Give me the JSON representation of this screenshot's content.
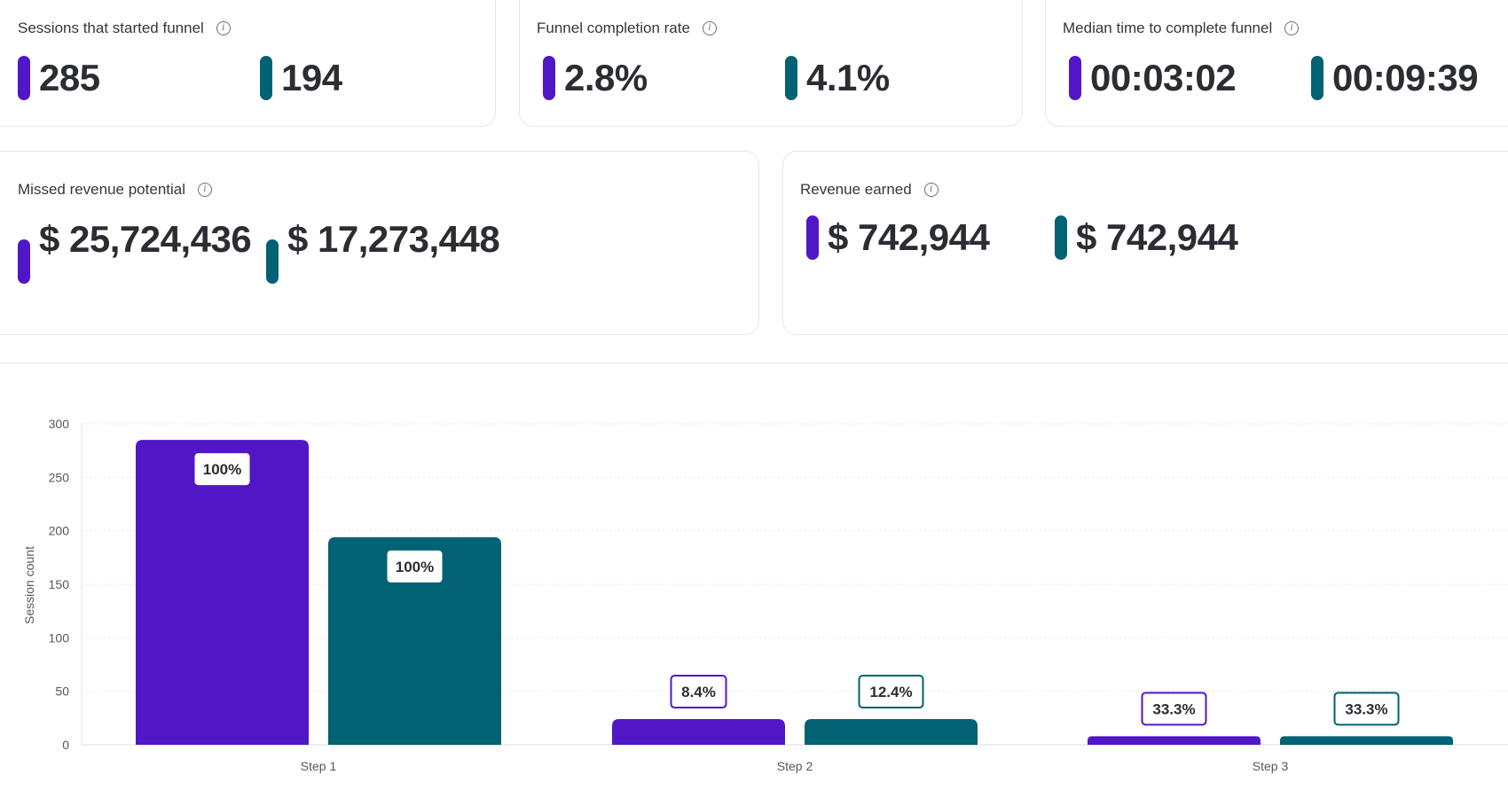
{
  "colors": {
    "series_a": "#5117c7",
    "series_b": "#006272"
  },
  "cards": {
    "sessions": {
      "title": "Sessions that started funnel",
      "a": "285",
      "b": "194"
    },
    "completion": {
      "title": "Funnel completion rate",
      "a": "2.8%",
      "b": "4.1%"
    },
    "median_time": {
      "title": "Median time to complete funnel",
      "a": "00:03:02",
      "b": "00:09:39"
    },
    "missed_revenue": {
      "title": "Missed revenue potential",
      "a": "$ 25,724,436",
      "b": "$ 17,273,448"
    },
    "revenue_earned": {
      "title": "Revenue earned",
      "a": "$ 742,944",
      "b": "$ 742,944"
    }
  },
  "icons": {
    "info": "info-circle-icon"
  },
  "chart_data": {
    "type": "bar",
    "categories": [
      "Step 1",
      "Step 2",
      "Step 3"
    ],
    "series": [
      {
        "values": [
          285,
          24,
          8
        ],
        "labels": [
          "100%",
          "8.4%",
          "33.3%"
        ],
        "color": "#5117c7"
      },
      {
        "values": [
          194,
          24,
          8
        ],
        "labels": [
          "100%",
          "12.4%",
          "33.3%"
        ],
        "color": "#006272"
      }
    ],
    "ylabel": "Session count",
    "yticks": [
      "0",
      "50",
      "100",
      "150",
      "200",
      "250",
      "300"
    ],
    "ylim": [
      0,
      300
    ],
    "grid": true
  }
}
